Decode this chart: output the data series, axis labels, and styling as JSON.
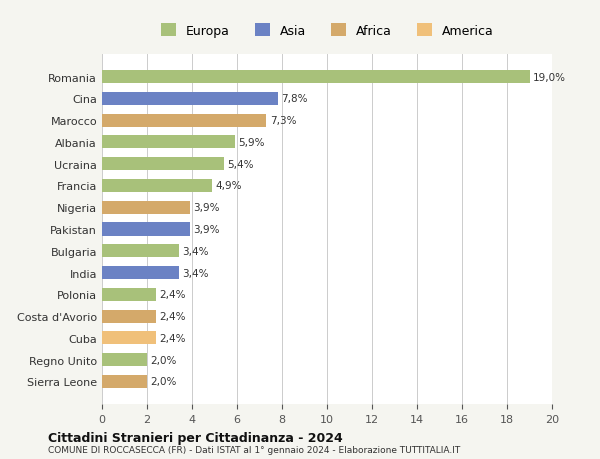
{
  "countries": [
    "Sierra Leone",
    "Regno Unito",
    "Cuba",
    "Costa d'Avorio",
    "Polonia",
    "India",
    "Bulgaria",
    "Pakistan",
    "Nigeria",
    "Francia",
    "Ucraina",
    "Albania",
    "Marocco",
    "Cina",
    "Romania"
  ],
  "values": [
    2.0,
    2.0,
    2.4,
    2.4,
    2.4,
    3.4,
    3.4,
    3.9,
    3.9,
    4.9,
    5.4,
    5.9,
    7.3,
    7.8,
    19.0
  ],
  "labels": [
    "2,0%",
    "2,0%",
    "2,4%",
    "2,4%",
    "2,4%",
    "3,4%",
    "3,4%",
    "3,9%",
    "3,9%",
    "4,9%",
    "5,4%",
    "5,9%",
    "7,3%",
    "7,8%",
    "19,0%"
  ],
  "colors": [
    "#d4a96a",
    "#a8c17a",
    "#f0c07a",
    "#d4a96a",
    "#a8c17a",
    "#6b82c4",
    "#a8c17a",
    "#6b82c4",
    "#d4a96a",
    "#a8c17a",
    "#a8c17a",
    "#a8c17a",
    "#d4a96a",
    "#6b82c4",
    "#a8c17a"
  ],
  "legend_labels": [
    "Europa",
    "Asia",
    "Africa",
    "America"
  ],
  "legend_colors": [
    "#a8c17a",
    "#6b82c4",
    "#d4a96a",
    "#f0c07a"
  ],
  "title": "Cittadini Stranieri per Cittadinanza - 2024",
  "subtitle": "COMUNE DI ROCCASECCA (FR) - Dati ISTAT al 1° gennaio 2024 - Elaborazione TUTTITALIA.IT",
  "xlim": [
    0,
    20
  ],
  "xticks": [
    0,
    2,
    4,
    6,
    8,
    10,
    12,
    14,
    16,
    18,
    20
  ],
  "bg_color": "#f5f5f0",
  "bar_bg_color": "#ffffff",
  "grid_color": "#cccccc"
}
